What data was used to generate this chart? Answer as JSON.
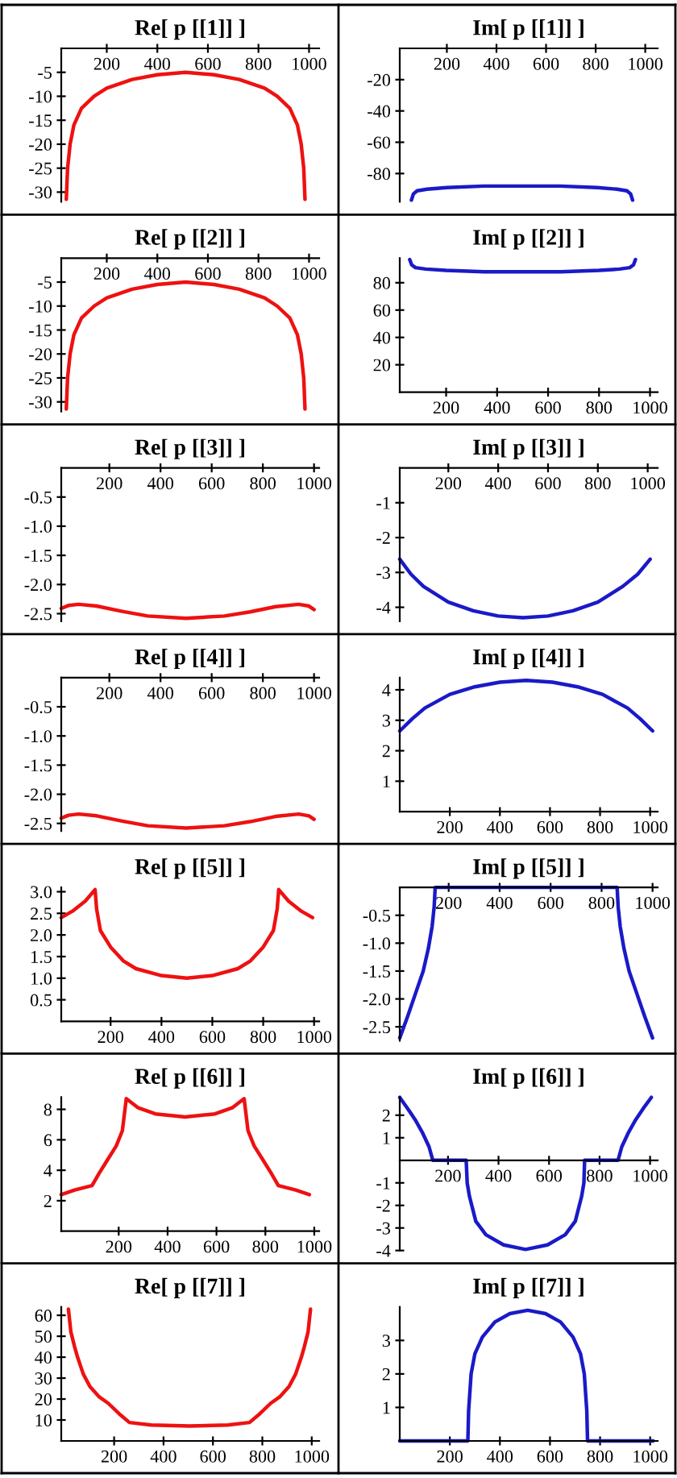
{
  "chart_data": [
    {
      "type": "line",
      "title": "Re[ p [[1]] ]",
      "x": [
        40,
        45,
        55,
        70,
        100,
        150,
        200,
        300,
        400,
        512,
        624,
        724,
        824,
        874,
        924,
        954,
        969,
        979,
        984
      ],
      "series": [
        {
          "color": "#ee1111",
          "values": [
            -31.5,
            -25,
            -20,
            -16,
            -12.5,
            -10,
            -8.3,
            -6.5,
            -5.5,
            -5,
            -5.5,
            -6.5,
            -8.3,
            -10,
            -12.5,
            -16,
            -20,
            -25,
            -31.5
          ]
        }
      ],
      "xlim": [
        20,
        1040
      ],
      "ylim": [
        -32,
        0
      ],
      "xticks": [
        200,
        400,
        600,
        800,
        1000
      ],
      "yticks": [
        -5,
        -10,
        -15,
        -20,
        -25,
        -30
      ]
    },
    {
      "type": "line",
      "title": "Im[ p [[1]] ]",
      "x": [
        57,
        65,
        80,
        120,
        200,
        350,
        503,
        656,
        806,
        886,
        926,
        941,
        949
      ],
      "series": [
        {
          "color": "#1a1ac8",
          "values": [
            -97,
            -93,
            -91,
            -90,
            -89,
            -88,
            -88,
            -88,
            -89,
            -90,
            -91,
            -93,
            -97
          ]
        }
      ],
      "xlim": [
        10,
        1050
      ],
      "ylim": [
        -98,
        0
      ],
      "xticks": [
        200,
        400,
        600,
        800,
        1000
      ],
      "yticks": [
        -20,
        -40,
        -60,
        -80
      ]
    },
    {
      "type": "line",
      "title": "Re[ p [[2]] ]",
      "x": [
        40,
        45,
        55,
        70,
        100,
        150,
        200,
        300,
        400,
        512,
        624,
        724,
        824,
        874,
        924,
        954,
        969,
        979,
        984
      ],
      "series": [
        {
          "color": "#ee1111",
          "values": [
            -31.5,
            -25,
            -20,
            -16,
            -12.5,
            -10,
            -8.3,
            -6.5,
            -5.5,
            -5,
            -5.5,
            -6.5,
            -8.3,
            -10,
            -12.5,
            -16,
            -20,
            -25,
            -31.5
          ]
        }
      ],
      "xlim": [
        20,
        1040
      ],
      "ylim": [
        -32,
        0
      ],
      "xticks": [
        200,
        400,
        600,
        800,
        1000
      ],
      "yticks": [
        -5,
        -10,
        -15,
        -20,
        -25,
        -30
      ]
    },
    {
      "type": "line",
      "title": "Im[ p [[2]] ]",
      "x": [
        57,
        65,
        80,
        120,
        200,
        350,
        500,
        650,
        800,
        880,
        920,
        935,
        943
      ],
      "series": [
        {
          "color": "#1a1ac8",
          "values": [
            97,
            93,
            91,
            90,
            89,
            88,
            88,
            88,
            89,
            90,
            91,
            93,
            97
          ]
        }
      ],
      "xlim": [
        18,
        1030
      ],
      "ylim": [
        0,
        98
      ],
      "xticks": [
        200,
        400,
        600,
        800,
        1000
      ],
      "yticks": [
        20,
        40,
        60,
        80
      ]
    },
    {
      "type": "line",
      "title": "Re[ p [[3]] ]",
      "x": [
        12,
        40,
        80,
        150,
        250,
        350,
        500,
        650,
        750,
        850,
        940,
        980,
        1000
      ],
      "series": [
        {
          "color": "#ee1111",
          "values": [
            -2.41,
            -2.36,
            -2.34,
            -2.37,
            -2.46,
            -2.54,
            -2.58,
            -2.54,
            -2.47,
            -2.38,
            -2.34,
            -2.37,
            -2.43
          ]
        }
      ],
      "xlim": [
        12,
        1020
      ],
      "ylim": [
        -2.63,
        0
      ],
      "xticks": [
        200,
        400,
        600,
        800,
        1000
      ],
      "yticks": [
        -0.5,
        {
          "value": -1,
          "label": "-1.0"
        },
        -1.5,
        {
          "value": -2,
          "label": "-2.0"
        },
        -2.5
      ]
    },
    {
      "type": "line",
      "title": "Im[ p [[3]] ]",
      "x": [
        5,
        50,
        100,
        200,
        300,
        400,
        500,
        600,
        700,
        800,
        900,
        960,
        1010
      ],
      "series": [
        {
          "color": "#1a1ac8",
          "values": [
            -2.62,
            -3.05,
            -3.4,
            -3.85,
            -4.1,
            -4.25,
            -4.3,
            -4.25,
            -4.1,
            -3.85,
            -3.4,
            -3.05,
            -2.62
          ]
        }
      ],
      "xlim": [
        5,
        1040
      ],
      "ylim": [
        -4.4,
        0
      ],
      "xticks": [
        200,
        400,
        600,
        800,
        1000
      ],
      "yticks": [
        -1,
        -2,
        -3,
        -4
      ]
    },
    {
      "type": "line",
      "title": "Re[ p [[4]] ]",
      "x": [
        12,
        40,
        80,
        150,
        250,
        350,
        500,
        650,
        750,
        850,
        940,
        980,
        1000
      ],
      "series": [
        {
          "color": "#ee1111",
          "values": [
            -2.41,
            -2.36,
            -2.34,
            -2.37,
            -2.46,
            -2.54,
            -2.58,
            -2.54,
            -2.47,
            -2.38,
            -2.34,
            -2.37,
            -2.43
          ]
        }
      ],
      "xlim": [
        12,
        1020
      ],
      "ylim": [
        -2.63,
        0
      ],
      "xticks": [
        200,
        400,
        600,
        800,
        1000
      ],
      "yticks": [
        -0.5,
        {
          "value": -1,
          "label": "-1.0"
        },
        -1.5,
        {
          "value": -2,
          "label": "-2.0"
        },
        -2.5
      ]
    },
    {
      "type": "line",
      "title": "Im[ p [[4]] ]",
      "x": [
        0,
        50,
        100,
        200,
        300,
        400,
        505,
        610,
        710,
        810,
        910,
        960,
        1010
      ],
      "series": [
        {
          "color": "#1a1ac8",
          "values": [
            2.65,
            3.05,
            3.4,
            3.85,
            4.1,
            4.25,
            4.31,
            4.25,
            4.1,
            3.85,
            3.4,
            3.05,
            2.65
          ]
        }
      ],
      "xlim": [
        0,
        1030
      ],
      "ylim": [
        0,
        4.4
      ],
      "xticks": [
        200,
        400,
        600,
        800,
        1000
      ],
      "yticks": [
        1,
        2,
        3,
        4
      ]
    },
    {
      "type": "line",
      "title": "Re[ p [[5]] ]",
      "x": [
        6,
        50,
        100,
        139,
        145,
        160,
        200,
        250,
        300,
        400,
        500,
        600,
        700,
        750,
        800,
        840,
        855,
        861,
        900,
        950,
        994
      ],
      "series": [
        {
          "color": "#ee1111",
          "values": [
            2.4,
            2.55,
            2.78,
            3.05,
            2.6,
            2.1,
            1.72,
            1.4,
            1.22,
            1.06,
            1.0,
            1.06,
            1.22,
            1.4,
            1.72,
            2.1,
            2.6,
            3.05,
            2.78,
            2.55,
            2.4
          ]
        }
      ],
      "xlim": [
        6,
        1020
      ],
      "ylim": [
        0,
        3.1
      ],
      "xticks": [
        200,
        400,
        600,
        800,
        1000
      ],
      "yticks": [
        0.5,
        {
          "value": 1,
          "label": "1.0"
        },
        1.5,
        {
          "value": 2,
          "label": "2.0"
        },
        2.5,
        {
          "value": 3,
          "label": "3.0"
        }
      ]
    },
    {
      "type": "line",
      "title": "Im[ p [[5]] ]",
      "x": [
        8,
        40,
        70,
        100,
        120,
        135,
        143,
        147,
        861,
        865,
        873,
        888,
        908,
        938,
        968,
        1000
      ],
      "series": [
        {
          "color": "#1a1ac8",
          "values": [
            -2.7,
            -2.3,
            -1.9,
            -1.5,
            -1.1,
            -0.7,
            -0.35,
            0,
            0,
            -0.35,
            -0.7,
            -1.1,
            -1.5,
            -1.9,
            -2.3,
            -2.7
          ]
        }
      ],
      "xlim": [
        8,
        1020
      ],
      "ylim": [
        -2.75,
        0
      ],
      "xticks": [
        200,
        400,
        600,
        800,
        1000
      ],
      "yticks": [
        -0.5,
        {
          "value": -1,
          "label": "-1.0"
        },
        -1.5,
        {
          "value": -2,
          "label": "-2.0"
        },
        -2.5
      ]
    },
    {
      "type": "line",
      "title": "Re[ p [[6]] ]",
      "x": [
        -35,
        20,
        91,
        120,
        151,
        190,
        215,
        231,
        280,
        350,
        472,
        594,
        664,
        713,
        729,
        754,
        793,
        824,
        853,
        924,
        980
      ],
      "series": [
        {
          "color": "#ee1111",
          "values": [
            2.4,
            2.7,
            3.0,
            3.8,
            4.6,
            5.6,
            6.6,
            8.7,
            8.1,
            7.7,
            7.5,
            7.7,
            8.1,
            8.7,
            6.6,
            5.6,
            4.6,
            3.8,
            3.0,
            2.7,
            2.4
          ]
        }
      ],
      "xlim": [
        -35,
        1020
      ],
      "ylim": [
        0,
        8.8
      ],
      "xticks": [
        200,
        400,
        600,
        800,
        1000
      ],
      "yticks": [
        2,
        4,
        6,
        8
      ]
    },
    {
      "type": "line",
      "title": "Im[ p [[6]] ]",
      "x": [
        9,
        40,
        70,
        100,
        125,
        140,
        272,
        276,
        285,
        310,
        350,
        420,
        507,
        594,
        664,
        704,
        729,
        738,
        741,
        873,
        888,
        913,
        943,
        973,
        1005
      ],
      "series": [
        {
          "color": "#1a1ac8",
          "values": [
            2.79,
            2.3,
            1.8,
            1.2,
            0.6,
            0,
            0,
            -1.0,
            -1.6,
            -2.7,
            -3.3,
            -3.75,
            -3.95,
            -3.75,
            -3.3,
            -2.7,
            -1.6,
            -1.0,
            0,
            0,
            0.6,
            1.2,
            1.8,
            2.3,
            2.79
          ]
        }
      ],
      "xlim": [
        9,
        1030
      ],
      "ylim": [
        -4,
        2.8
      ],
      "xticks": [
        200,
        400,
        600,
        800,
        1000
      ],
      "yticks": [
        2,
        1,
        -1,
        -2,
        -3,
        -4
      ]
    },
    {
      "type": "line",
      "title": "Re[ p [[7]] ]",
      "x": [
        15,
        25,
        40,
        52,
        75,
        102,
        140,
        176,
        220,
        262,
        350,
        505,
        660,
        748,
        790,
        834,
        870,
        908,
        935,
        958,
        970,
        985,
        995
      ],
      "series": [
        {
          "color": "#ee1111",
          "values": [
            62.9,
            52,
            45,
            40,
            32,
            26,
            21,
            18,
            13,
            8.8,
            7.6,
            7.1,
            7.6,
            8.8,
            13,
            18,
            21,
            26,
            32,
            40,
            45,
            52,
            62.9
          ]
        }
      ],
      "xlim": [
        -14,
        1030
      ],
      "ylim": [
        0,
        64
      ],
      "xticks": [
        200,
        400,
        600,
        800,
        1000
      ],
      "yticks": [
        10,
        20,
        30,
        40,
        50,
        60
      ]
    },
    {
      "type": "line",
      "title": "Im[ p [[7]] ]",
      "x": [
        0,
        272,
        275,
        285,
        300,
        330,
        380,
        440,
        511,
        582,
        642,
        692,
        722,
        737,
        747,
        750,
        1012
      ],
      "series": [
        {
          "color": "#1a1ac8",
          "values": [
            0,
            0,
            0.9,
            2.0,
            2.6,
            3.1,
            3.55,
            3.8,
            3.9,
            3.8,
            3.55,
            3.1,
            2.6,
            2.0,
            0.9,
            0,
            0
          ]
        }
      ],
      "xlim": [
        0,
        1030
      ],
      "ylim": [
        0,
        4.0
      ],
      "xticks": [
        200,
        400,
        600,
        800,
        1000
      ],
      "yticks": [
        1,
        2,
        3
      ]
    }
  ]
}
